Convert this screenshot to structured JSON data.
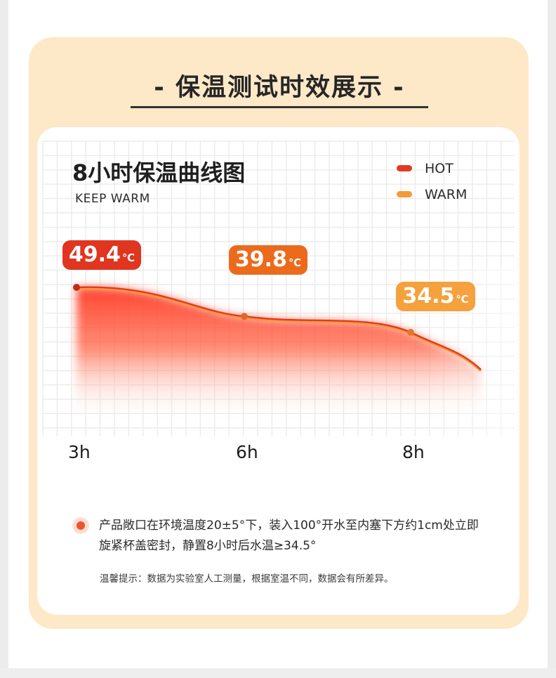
{
  "heading": "- 保温测试时效展示 -",
  "chart_data": {
    "type": "area",
    "title": "8小时保温曲线图",
    "subtitle": "KEEP WARM",
    "legend": [
      "HOT",
      "WARM"
    ],
    "legend_position": "top-right",
    "x": [
      "3h",
      "6h",
      "8h"
    ],
    "unit": "℃",
    "series": [
      {
        "name": "HOT",
        "values": [
          49.4,
          39.8,
          34.5
        ]
      },
      {
        "name": "WARM",
        "values": [
          49.4,
          39.8,
          34.5
        ]
      }
    ],
    "data_labels": [
      "49.4",
      "39.8",
      "34.5"
    ],
    "grid": true
  },
  "colors": {
    "hot": "#e23a22",
    "warm": "#f59a3a",
    "badge1": "#e0351f",
    "badge2": "#ec6a1c",
    "badge3": "#f5a13d"
  },
  "note": "产品敞口在环境温度20±5°下，装入100°开水至内塞下方约1cm处立即旋紧杯盖密封，静置8小时后水温≥34.5°",
  "hint": "温馨提示：数据为实验室人工测量，根据室温不同，数据会有所差异。"
}
